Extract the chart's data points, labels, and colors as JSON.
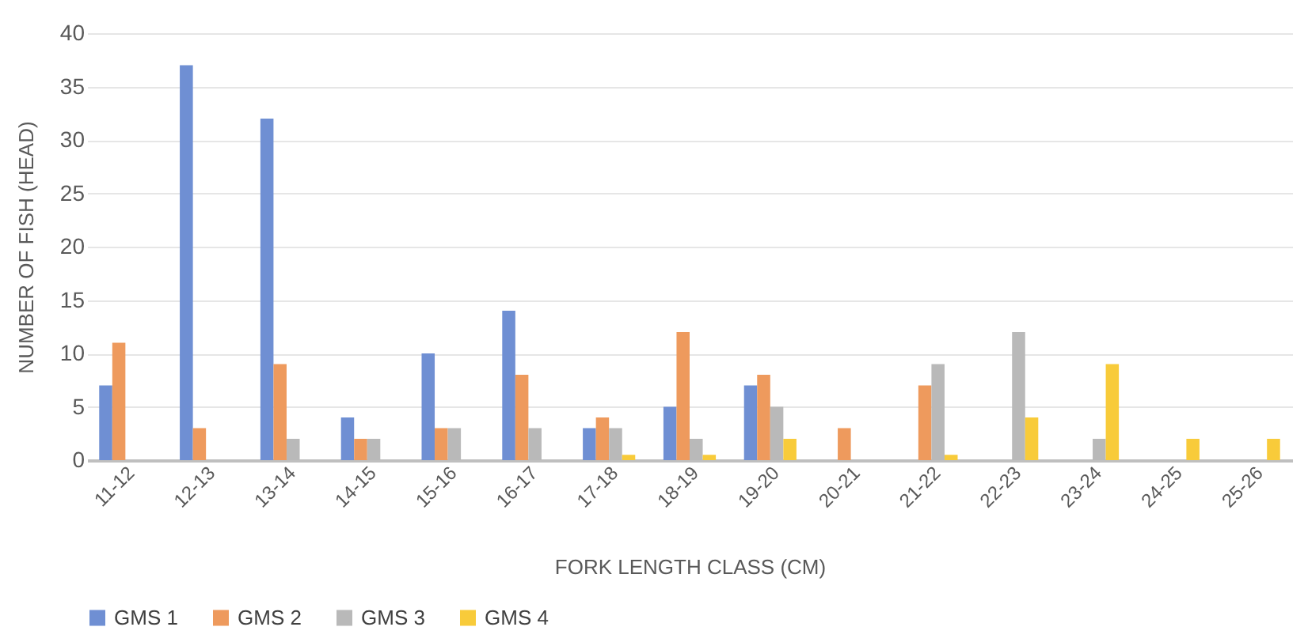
{
  "chart_data": {
    "type": "bar",
    "xlabel": "FORK LENGTH CLASS (CM)",
    "ylabel": "NUMBER OF FISH (HEAD)",
    "categories": [
      "11-12",
      "12-13",
      "13-14",
      "14-15",
      "15-16",
      "16-17",
      "17-18",
      "18-19",
      "19-20",
      "20-21",
      "21-22",
      "22-23",
      "23-24",
      "24-25",
      "25-26"
    ],
    "series": [
      {
        "name": "GMS 1",
        "color": "#6f8fd3",
        "values": [
          7,
          37,
          32,
          4,
          10,
          14,
          3,
          5,
          7,
          0,
          0,
          0,
          0,
          0,
          0
        ]
      },
      {
        "name": "GMS 2",
        "color": "#ee9a5d",
        "values": [
          11,
          3,
          9,
          2,
          3,
          8,
          4,
          12,
          8,
          3,
          7,
          0,
          0,
          0,
          0
        ]
      },
      {
        "name": "GMS 3",
        "color": "#b9b9b9",
        "values": [
          0,
          0,
          2,
          2,
          3,
          3,
          3,
          2,
          5,
          0,
          9,
          12,
          2,
          0,
          0
        ]
      },
      {
        "name": "GMS 4",
        "color": "#f8cb3a",
        "values": [
          0,
          0,
          0,
          0,
          0,
          0,
          0.5,
          0.5,
          2,
          0,
          0.5,
          4,
          9,
          2,
          2
        ]
      }
    ],
    "ylim": [
      0,
      40
    ],
    "yticks": [
      0,
      5,
      10,
      15,
      20,
      25,
      30,
      35,
      40
    ],
    "grid": "y",
    "legend": "bottom"
  }
}
